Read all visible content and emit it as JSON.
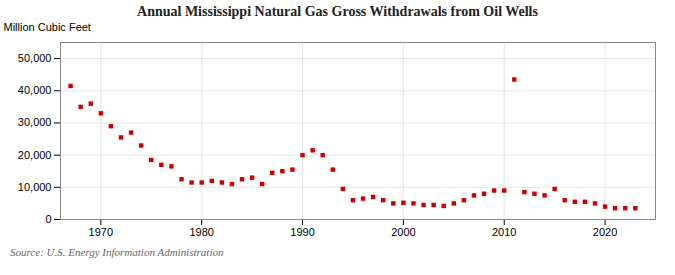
{
  "chart_data": {
    "type": "scatter",
    "title": "Annual Mississippi Natural Gas Gross Withdrawals from Oil Wells",
    "ylabel": "Million Cubic Feet",
    "source": "Source: U.S. Energy Information Administration",
    "color": "#cc0000",
    "marker": "square",
    "grid": true,
    "xlim": [
      1966,
      2025
    ],
    "xticks": [
      1970,
      1980,
      1990,
      2000,
      2010,
      2020
    ],
    "ylim": [
      0,
      55000
    ],
    "yticks": [
      0,
      {
        "value": 10000,
        "label": "10,000"
      },
      {
        "value": 20000,
        "label": "20,000"
      },
      {
        "value": 30000,
        "label": "30,000"
      },
      {
        "value": 40000,
        "label": "40,000"
      },
      {
        "value": 50000,
        "label": "50,000"
      }
    ],
    "x": [
      1967,
      1968,
      1969,
      1970,
      1971,
      1972,
      1973,
      1974,
      1975,
      1976,
      1977,
      1978,
      1979,
      1980,
      1981,
      1982,
      1983,
      1984,
      1985,
      1986,
      1987,
      1988,
      1989,
      1990,
      1991,
      1992,
      1993,
      1994,
      1995,
      1996,
      1997,
      1998,
      1999,
      2000,
      2001,
      2002,
      2003,
      2004,
      2005,
      2006,
      2007,
      2008,
      2009,
      2010,
      2011,
      2012,
      2013,
      2014,
      2015,
      2016,
      2017,
      2018,
      2019,
      2020,
      2021,
      2022,
      2023
    ],
    "values": [
      41500,
      35000,
      36000,
      33000,
      29000,
      25500,
      27000,
      23000,
      18500,
      17000,
      16500,
      12500,
      11500,
      11500,
      12000,
      11500,
      11000,
      12500,
      13000,
      11000,
      14500,
      15000,
      15500,
      20000,
      21500,
      20000,
      15500,
      9500,
      6000,
      6500,
      7000,
      6000,
      5000,
      5200,
      5000,
      4500,
      4500,
      4200,
      5000,
      6000,
      7500,
      8000,
      9000,
      9000,
      43500,
      8500,
      8000,
      7500,
      9500,
      6000,
      5500,
      5500,
      5000,
      4000,
      3500,
      3500,
      3500
    ]
  }
}
